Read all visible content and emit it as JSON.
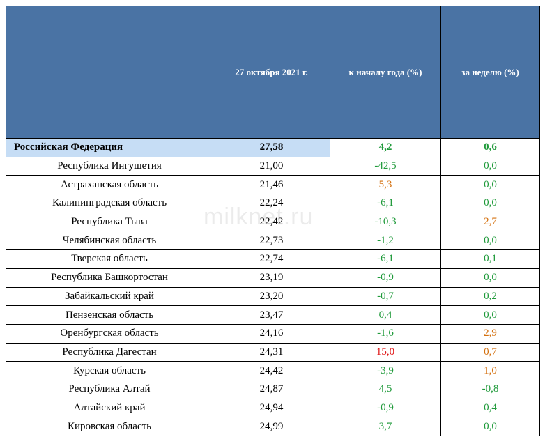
{
  "watermark": "milknet.ru",
  "table": {
    "headers": [
      "",
      "27 октября 2021 г.",
      "к началу года (%)",
      "за неделю (%)"
    ],
    "summary": {
      "region": "Российская Федерация",
      "price": "27,58",
      "ytd": "4,2",
      "week": "0,6"
    },
    "rows": [
      {
        "region": "Республика Ингушетия",
        "price": "21,00",
        "ytd": "-42,5",
        "week": "0,0"
      },
      {
        "region": "Астраханская область",
        "price": "21,46",
        "ytd": "5,3",
        "week": "0,0"
      },
      {
        "region": "Калининградская область",
        "price": "22,24",
        "ytd": "-6,1",
        "week": "0,0"
      },
      {
        "region": "Республика Тыва",
        "price": "22,42",
        "ytd": "-10,3",
        "week": "2,7"
      },
      {
        "region": "Челябинская область",
        "price": "22,73",
        "ytd": "-1,2",
        "week": "0,0"
      },
      {
        "region": "Тверская область",
        "price": "22,74",
        "ytd": "-6,1",
        "week": "0,1"
      },
      {
        "region": "Республика Башкортостан",
        "price": "23,19",
        "ytd": "-0,9",
        "week": "0,0"
      },
      {
        "region": "Забайкальский край",
        "price": "23,20",
        "ytd": "-0,7",
        "week": "0,2"
      },
      {
        "region": "Пензенская область",
        "price": "23,47",
        "ytd": "0,4",
        "week": "0,0"
      },
      {
        "region": "Оренбургская область",
        "price": "24,16",
        "ytd": "-1,6",
        "week": "2,9"
      },
      {
        "region": "Республика Дагестан",
        "price": "24,31",
        "ytd": "15,0",
        "week": "0,7"
      },
      {
        "region": "Курская область",
        "price": "24,42",
        "ytd": "-3,9",
        "week": "1,0"
      },
      {
        "region": "Республика Алтай",
        "price": "24,87",
        "ytd": "4,5",
        "week": "-0,8"
      },
      {
        "region": "Алтайский край",
        "price": "24,94",
        "ytd": "-0,9",
        "week": "0,4"
      },
      {
        "region": "Кировская область",
        "price": "24,99",
        "ytd": "3,7",
        "week": "0,0"
      }
    ]
  },
  "value_colors": {
    "green": "#1f9a3a",
    "orange": "#d4700e",
    "red": "#e01515"
  }
}
